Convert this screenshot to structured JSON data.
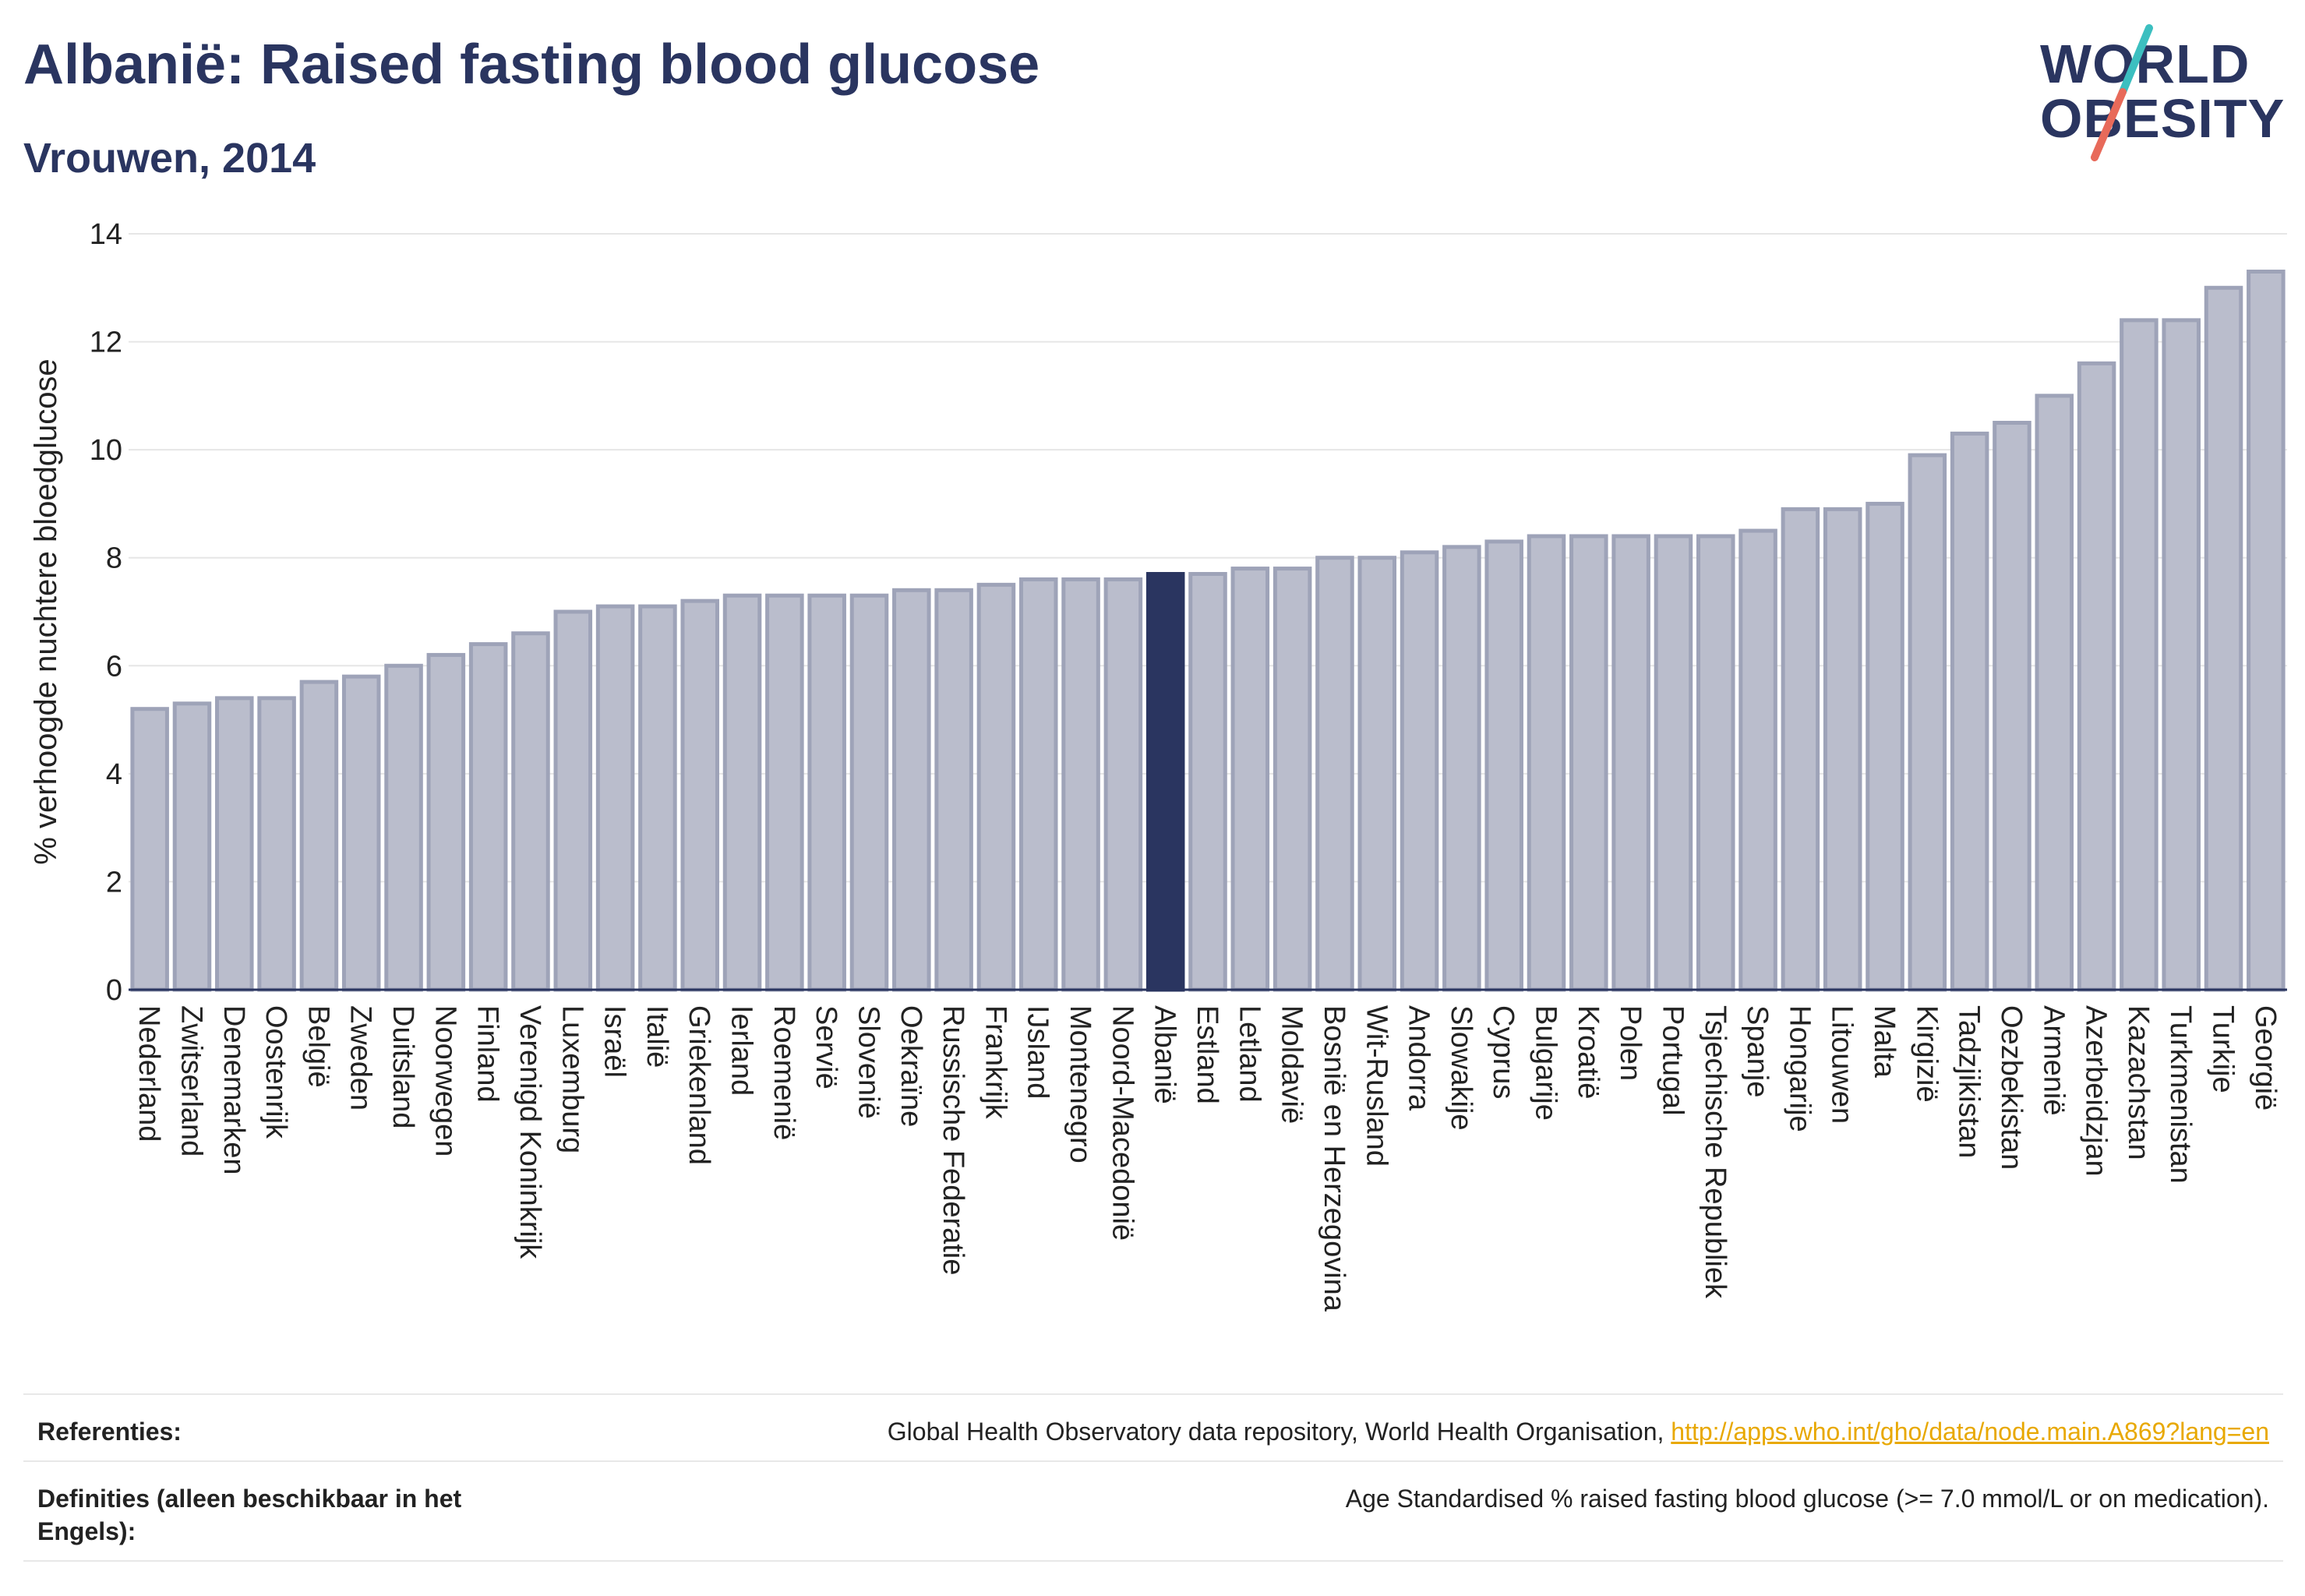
{
  "header": {
    "title": "Albanië: Raised fasting blood glucose",
    "subtitle": "Vrouwen, 2014"
  },
  "logo": {
    "line1": "WORLD",
    "line2": "OBESITY",
    "colors": {
      "text": "#2a3560",
      "slash_top": "#3cbfc0",
      "slash_bottom": "#e86a5a"
    }
  },
  "colors": {
    "bar": "#babdcc",
    "bar_stroke": "#9ea3b8",
    "highlight": "#2a3560",
    "grid": "#e6e6e6",
    "axis": "#2a3560"
  },
  "chart_data": {
    "type": "bar",
    "ylabel": "% verhoogde nuchtere bloedglucose",
    "xlabel": "",
    "ylim": [
      0,
      14
    ],
    "yticks": [
      0,
      2,
      4,
      6,
      8,
      10,
      12,
      14
    ],
    "grid": true,
    "highlight": "Albanië",
    "categories": [
      "Nederland",
      "Zwitserland",
      "Denemarken",
      "Oostenrijk",
      "België",
      "Zweden",
      "Duitsland",
      "Noorwegen",
      "Finland",
      "Verenigd Koninkrijk",
      "Luxemburg",
      "Israël",
      "Italië",
      "Griekenland",
      "Ierland",
      "Roemenië",
      "Servië",
      "Slovenië",
      "Oekraïne",
      "Russische Federatie",
      "Frankrijk",
      "IJsland",
      "Montenegro",
      "Noord-Macedonië",
      "Albanië",
      "Estland",
      "Letland",
      "Moldavië",
      "Bosnië en Herzegovina",
      "Wit-Rusland",
      "Andorra",
      "Slowakije",
      "Cyprus",
      "Bulgarije",
      "Kroatië",
      "Polen",
      "Portugal",
      "Tsjechische Republiek",
      "Spanje",
      "Hongarije",
      "Litouwen",
      "Malta",
      "Kirgizië",
      "Tadzjikistan",
      "Oezbekistan",
      "Armenië",
      "Azerbeidzjan",
      "Kazachstan",
      "Turkmenistan",
      "Turkije",
      "Georgië"
    ],
    "values": [
      5.2,
      5.3,
      5.4,
      5.4,
      5.7,
      5.8,
      6.0,
      6.2,
      6.4,
      6.6,
      7.0,
      7.1,
      7.1,
      7.2,
      7.3,
      7.3,
      7.3,
      7.3,
      7.4,
      7.4,
      7.5,
      7.6,
      7.6,
      7.6,
      7.7,
      7.7,
      7.8,
      7.8,
      8.0,
      8.0,
      8.1,
      8.2,
      8.3,
      8.4,
      8.4,
      8.4,
      8.4,
      8.4,
      8.5,
      8.9,
      8.9,
      9.0,
      9.9,
      10.3,
      10.5,
      11.0,
      11.6,
      12.4,
      12.4,
      13.0,
      13.3
    ]
  },
  "footer": {
    "references_label": "Referenties:",
    "references_text": "Global Health Observatory data repository, World Health Organisation, ",
    "references_link": "http://apps.who.int/gho/data/node.main.A869?lang=en",
    "definitions_label": "Definities (alleen beschikbaar in het Engels):",
    "definitions_text": "Age Standardised % raised fasting blood glucose (>= 7.0 mmol/L or on medication)."
  }
}
